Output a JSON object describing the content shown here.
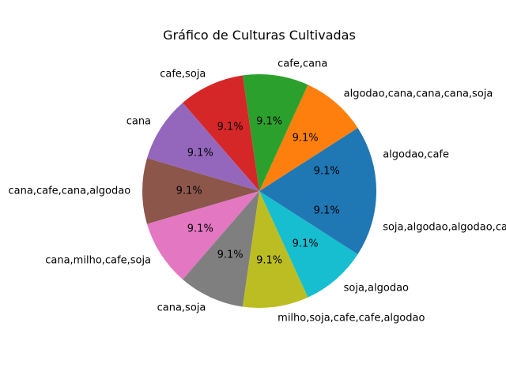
{
  "chart_data": {
    "type": "pie",
    "title": "Gráfico de Culturas Cultivadas",
    "categories": [
      "algodao,cafe",
      "algodao,cana,cana,cana,soja",
      "cafe,cana",
      "cafe,soja",
      "cana",
      "cana,cafe,cana,algodao",
      "cana,milho,cafe,soja",
      "cana,soja",
      "milho,soja,cafe,cafe,algodao",
      "soja,algodao",
      "soja,algodao,algodao,cafe"
    ],
    "values": [
      1,
      1,
      1,
      1,
      1,
      1,
      1,
      1,
      1,
      1,
      1
    ],
    "percent_labels": [
      "9.1%",
      "9.1%",
      "9.1%",
      "9.1%",
      "9.1%",
      "9.1%",
      "9.1%",
      "9.1%",
      "9.1%",
      "9.1%",
      "9.1%"
    ],
    "colors": [
      "#1f77b4",
      "#ff7f0e",
      "#2ca02c",
      "#d62728",
      "#9467bd",
      "#8c564b",
      "#e377c2",
      "#7f7f7f",
      "#bcbd22",
      "#17becf",
      "#1f77b4"
    ],
    "start_angle": "0° (3 o'clock), counter-clockwise",
    "legend": "none",
    "grid": false
  }
}
